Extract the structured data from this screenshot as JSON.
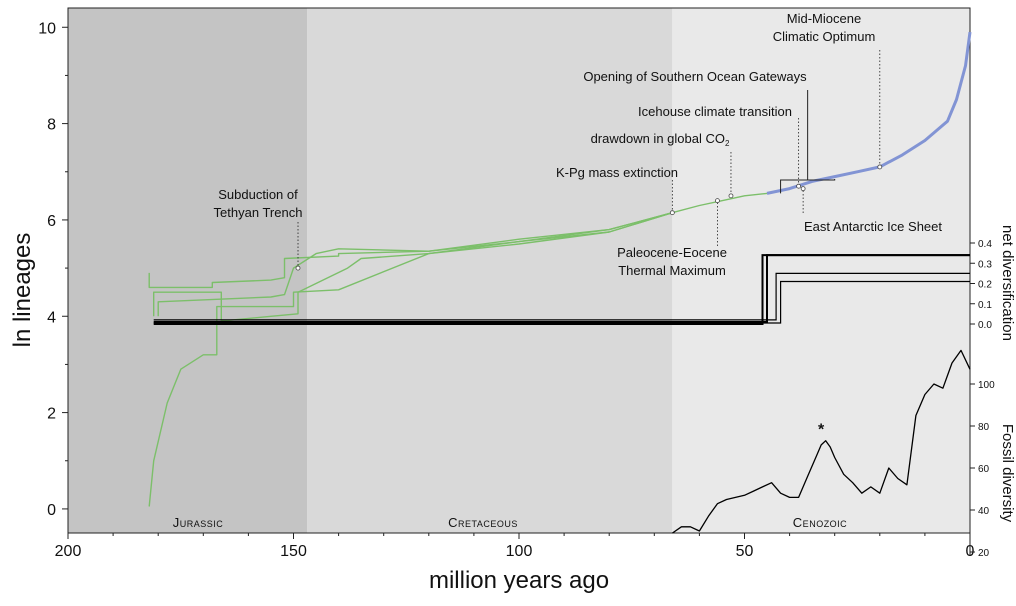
{
  "chart_data": {
    "type": "line",
    "xlabel": "million years ago",
    "ylabel": "ln lineages",
    "xlim": [
      200,
      0
    ],
    "ylim": [
      -0.5,
      10.4
    ],
    "x_ticks": [
      200,
      150,
      100,
      50,
      0
    ],
    "y_ticks": [
      0,
      2,
      4,
      6,
      8,
      10
    ],
    "periods": [
      {
        "label": "Jurassic",
        "start": 200,
        "end": 147,
        "color": "#c4c4c4"
      },
      {
        "label": "Cretaceous",
        "start": 147,
        "end": 66,
        "color": "#d9d9d9"
      },
      {
        "label": "Cenozoic",
        "start": 66,
        "end": 0,
        "color": "#e9e9e9"
      }
    ],
    "lineage_series": [
      {
        "color": "#7cbf6a",
        "x": [
          182,
          182,
          168,
          168,
          155,
          152,
          152,
          140,
          140,
          120,
          100,
          80,
          66
        ],
        "y": [
          4.9,
          4.6,
          4.6,
          4.7,
          4.75,
          4.8,
          5.2,
          5.25,
          5.3,
          5.35,
          5.55,
          5.8,
          6.15
        ]
      },
      {
        "color": "#7cbf6a",
        "x": [
          182,
          181,
          178,
          175,
          170,
          167,
          167,
          150,
          150,
          140,
          120,
          100,
          80,
          66
        ],
        "y": [
          0.05,
          1.0,
          2.2,
          2.9,
          3.2,
          3.2,
          4.2,
          4.2,
          4.5,
          4.55,
          5.3,
          5.55,
          5.75,
          6.15
        ]
      },
      {
        "color": "#7cbf6a",
        "x": [
          181,
          181,
          166,
          166,
          155,
          149,
          149,
          138,
          135,
          120,
          100,
          80,
          66
        ],
        "y": [
          4.0,
          4.5,
          4.5,
          3.9,
          4.0,
          4.05,
          4.5,
          5.0,
          5.2,
          5.3,
          5.5,
          5.75,
          6.15
        ]
      },
      {
        "color": "#7cbf6a",
        "x": [
          180,
          180,
          155,
          152,
          150,
          145,
          140,
          120,
          100,
          80,
          66
        ],
        "y": [
          4.0,
          4.3,
          4.4,
          4.45,
          5.0,
          5.3,
          5.4,
          5.35,
          5.6,
          5.8,
          6.15
        ]
      },
      {
        "color": "#7cbf6a",
        "x": [
          66,
          60,
          55,
          50,
          45
        ],
        "y": [
          6.15,
          6.3,
          6.4,
          6.5,
          6.55
        ]
      },
      {
        "color": "#8294d4",
        "x": [
          45,
          40,
          35,
          30,
          25,
          20,
          15,
          10,
          5,
          3,
          1,
          0
        ],
        "y": [
          6.55,
          6.65,
          6.8,
          6.9,
          7.0,
          7.1,
          7.35,
          7.65,
          8.05,
          8.5,
          9.2,
          9.9
        ]
      }
    ],
    "net_diversification": {
      "label": "net diversification",
      "ticks": [
        0.0,
        0.1,
        0.2,
        0.3,
        0.4
      ],
      "series": [
        {
          "x": [
            181,
            46,
            46,
            0
          ],
          "y": [
            0.0,
            0.0,
            0.34,
            0.34
          ]
        },
        {
          "x": [
            181,
            45,
            45,
            0
          ],
          "y": [
            0.01,
            0.01,
            0.34,
            0.34
          ]
        },
        {
          "x": [
            181,
            43,
            43,
            0
          ],
          "y": [
            0.02,
            0.02,
            0.25,
            0.25
          ]
        },
        {
          "x": [
            181,
            42,
            42,
            0
          ],
          "y": [
            0.005,
            0.005,
            0.21,
            0.21
          ]
        }
      ]
    },
    "fossil_diversity": {
      "label": "Fossil diversity",
      "ticks": [
        20,
        40,
        60,
        80,
        100
      ],
      "x": [
        66,
        64,
        62,
        60,
        58,
        56,
        54,
        52,
        50,
        48,
        46,
        44,
        42,
        40,
        38,
        36,
        34,
        33,
        32,
        31,
        30,
        28,
        26,
        24,
        22,
        20,
        18,
        16,
        14,
        12,
        10,
        8,
        6,
        4,
        2,
        0
      ],
      "y": [
        29,
        32,
        32,
        30,
        37,
        43,
        45,
        46,
        47,
        49,
        51,
        53,
        48,
        46,
        46,
        56,
        66,
        71,
        73,
        70,
        65,
        57,
        53,
        48,
        51,
        48,
        60,
        55,
        52,
        85,
        95,
        100,
        98,
        110,
        116,
        107
      ],
      "asterisk_x": 33
    },
    "annotations": [
      {
        "text": "Subduction of\nTethyan Trench",
        "x": 149,
        "y": 5.0
      },
      {
        "text": "K-Pg mass extinction",
        "x": 66,
        "y": 6.15
      },
      {
        "text": "Paleocene-Eocene\nThermal Maximum",
        "x": 56,
        "y": 6.4
      },
      {
        "text": "drawdown in global CO2",
        "x": 53,
        "y": 6.5
      },
      {
        "text": "Icehouse climate transition",
        "x": 38,
        "y": 6.7
      },
      {
        "text": "Opening of Southern Ocean Gateways",
        "x": 36,
        "y": 6.8
      },
      {
        "text": "East Antarctic Ice Sheet",
        "x": 37,
        "y": 6.65
      },
      {
        "text": "Mid-Miocene\nClimatic Optimum",
        "x": 20,
        "y": 7.1
      }
    ],
    "asterisk": "*"
  }
}
